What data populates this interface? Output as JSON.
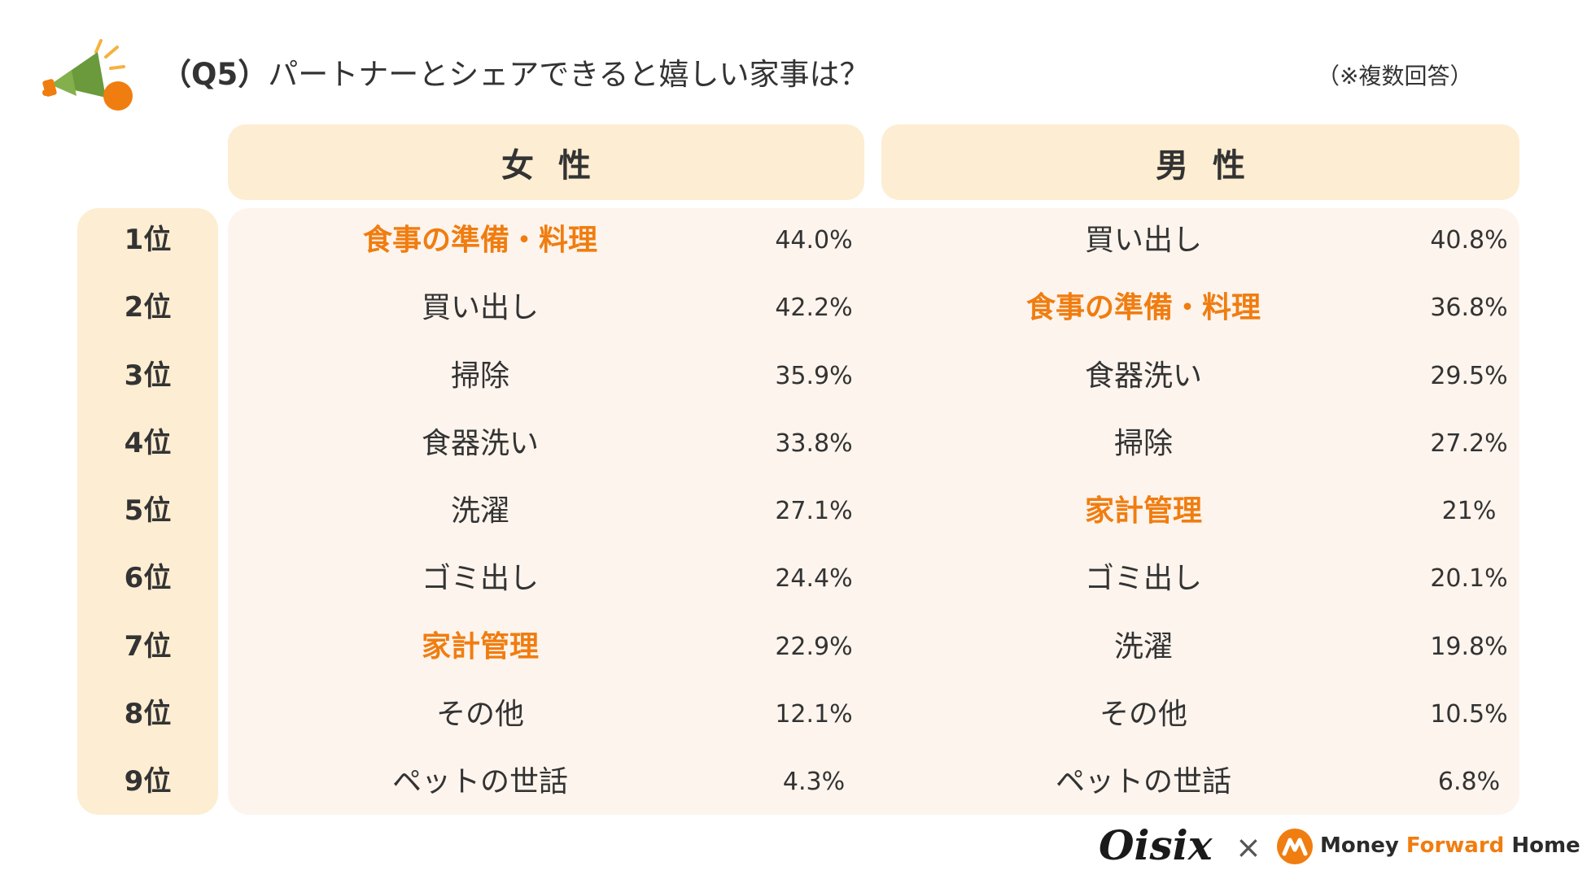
{
  "header": {
    "title_q": "（Q5）",
    "title_text": "パートナーとシェアできると嬉しい家事は？",
    "note": "（※複数回答）"
  },
  "columns": {
    "female": "女性",
    "male": "男性"
  },
  "highlight_color": "#f07d10",
  "rows": [
    {
      "rank": "1位",
      "female_item": "食事の準備・料理",
      "female_pct": "44.0%",
      "male_item": "買い出し",
      "male_pct": "40.8%"
    },
    {
      "rank": "2位",
      "female_item": "買い出し",
      "female_pct": "42.2%",
      "male_item": "食事の準備・料理",
      "male_pct": "36.8%"
    },
    {
      "rank": "3位",
      "female_item": "掃除",
      "female_pct": "35.9%",
      "male_item": "食器洗い",
      "male_pct": "29.5%"
    },
    {
      "rank": "4位",
      "female_item": "食器洗い",
      "female_pct": "33.8%",
      "male_item": "掃除",
      "male_pct": "27.2%"
    },
    {
      "rank": "5位",
      "female_item": "洗濯",
      "female_pct": "27.1%",
      "male_item": "家計管理",
      "male_pct": "21%"
    },
    {
      "rank": "6位",
      "female_item": "ゴミ出し",
      "female_pct": "24.4%",
      "male_item": "ゴミ出し",
      "male_pct": "20.1%"
    },
    {
      "rank": "7位",
      "female_item": "家計管理",
      "female_pct": "22.9%",
      "male_item": "洗濯",
      "male_pct": "19.8%"
    },
    {
      "rank": "8位",
      "female_item": "その他",
      "female_pct": "12.1%",
      "male_item": "その他",
      "male_pct": "10.5%"
    },
    {
      "rank": "9位",
      "female_item": "ペットの世話",
      "female_pct": "4.3%",
      "male_item": "ペットの世話",
      "male_pct": "6.8%"
    }
  ],
  "highlighted_items": [
    "食事の準備・料理",
    "家計管理"
  ],
  "footer": {
    "brand1": "Oisix",
    "separator": "×",
    "brand2_part1": "Money ",
    "brand2_part2": "Forward",
    "brand2_part3": " Home"
  }
}
